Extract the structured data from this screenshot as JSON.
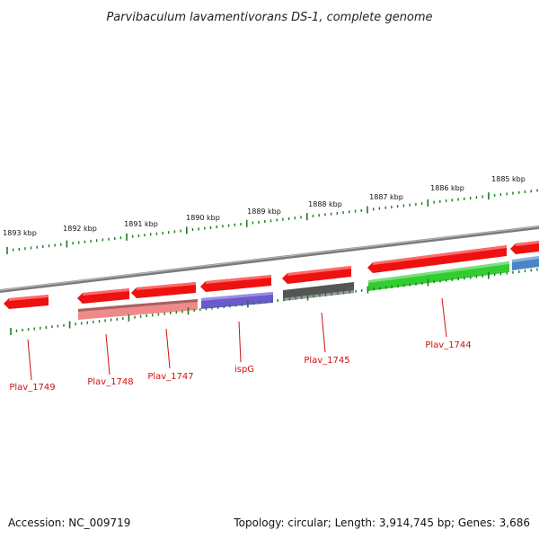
{
  "title": "Parvibaculum lavamentivorans DS-1, complete genome",
  "footer": {
    "accession": "Accession: NC_009719",
    "summary": "Topology: circular; Length: 3,914,745 bp; Genes: 3,686"
  },
  "scale_labels": [
    "1893 kbp",
    "1892 kbp",
    "1891 kbp",
    "1890 kbp",
    "1889 kbp",
    "1888 kbp",
    "1887 kbp",
    "1886 kbp",
    "1885 kbp"
  ],
  "gene_labels": [
    "Plav_1749",
    "Plav_1748",
    "Plav_1747",
    "ispG",
    "Plav_1745",
    "Plav_1744"
  ],
  "colors": {
    "backbone": "#8a8a8a",
    "forward_gene": "#ee1111",
    "ticks": "#1e7a1e",
    "label": "#cc1111",
    "Plav_1748": "#f08a8a",
    "Plav_1747": "#f08a8a",
    "ispG": "#6a5acd",
    "Plav_1745": "#555555",
    "Plav_1744": "#33cc33",
    "next_gene": "#4a86c5"
  }
}
